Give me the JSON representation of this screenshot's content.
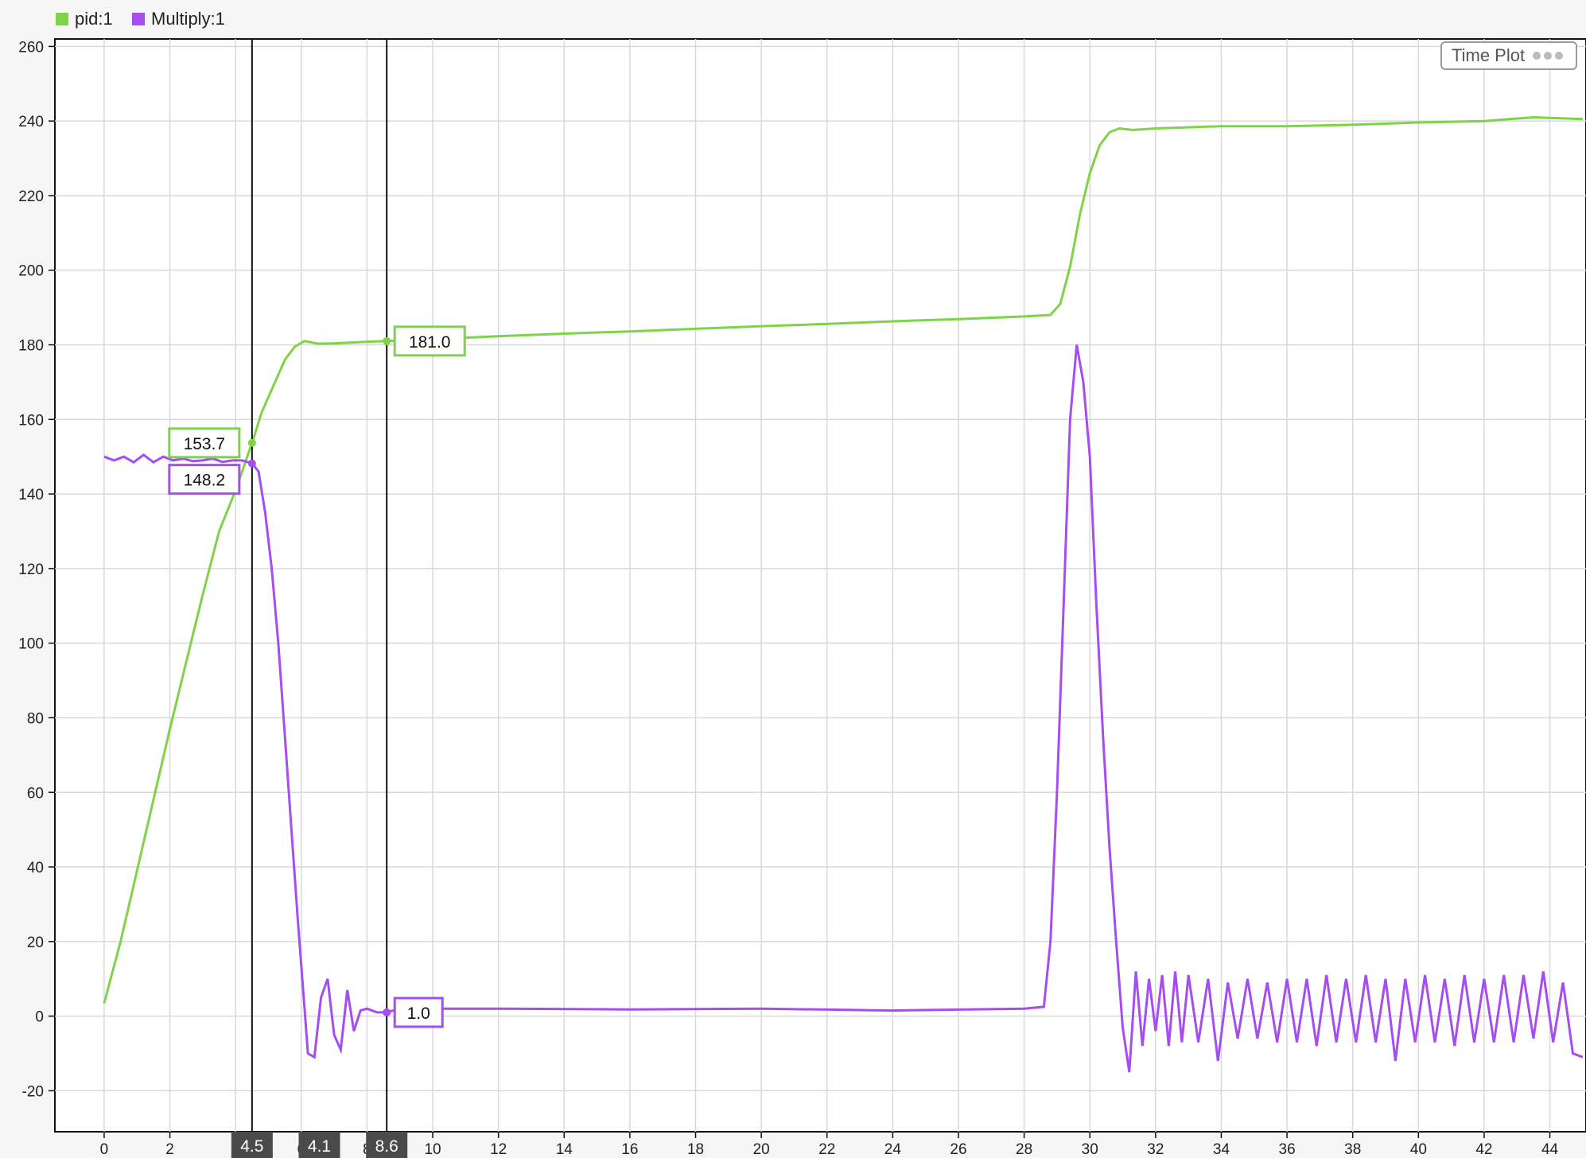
{
  "legend": [
    {
      "name": "pid:1",
      "color": "#7ed348"
    },
    {
      "name": "Multiply:1",
      "color": "#a64df1"
    }
  ],
  "time_plot_button": {
    "label": "Time Plot",
    "icon": "more-dots-icon"
  },
  "cursors": [
    {
      "x": 4.5,
      "label": "4.5"
    },
    {
      "x": 8.6,
      "label": "8.6"
    }
  ],
  "cursor_delta": {
    "label": "4.1"
  },
  "value_labels": [
    {
      "series": "pid:1",
      "x": 4.5,
      "y": 153.7,
      "text": "153.7"
    },
    {
      "series": "Multiply:1",
      "x": 4.5,
      "y": 148.2,
      "text": "148.2"
    },
    {
      "series": "pid:1",
      "x": 8.6,
      "y": 181.0,
      "text": "181.0"
    },
    {
      "series": "Multiply:1",
      "x": 8.6,
      "y": 1.0,
      "text": "1.0"
    }
  ],
  "chart_data": {
    "type": "line",
    "title": "",
    "xlabel": "",
    "ylabel": "",
    "xlim": [
      -1.5,
      45.1
    ],
    "ylim": [
      -31,
      262
    ],
    "x_ticks": [
      0,
      2,
      4,
      6,
      8,
      10,
      12,
      14,
      16,
      18,
      20,
      22,
      24,
      26,
      28,
      30,
      32,
      34,
      36,
      38,
      40,
      42,
      44
    ],
    "x_tick_labels": [
      "0",
      "2",
      "4",
      "6",
      "8",
      "10",
      "12",
      "14",
      "16",
      "18",
      "20",
      "22",
      "24",
      "26",
      "28",
      "30",
      "32",
      "34",
      "36",
      "38",
      "40",
      "42",
      "44"
    ],
    "y_ticks": [
      -20,
      0,
      20,
      40,
      60,
      80,
      100,
      120,
      140,
      160,
      180,
      200,
      220,
      240,
      260
    ],
    "y_tick_labels": [
      "-20",
      "0",
      "20",
      "40",
      "60",
      "80",
      "100",
      "120",
      "140",
      "160",
      "180",
      "200",
      "220",
      "240",
      "260"
    ],
    "grid": true,
    "legend_position": "top-left",
    "series": [
      {
        "name": "pid:1",
        "color": "#7ed348",
        "points": [
          [
            0,
            3.5
          ],
          [
            0.5,
            20
          ],
          [
            1,
            39
          ],
          [
            1.5,
            58
          ],
          [
            2,
            77
          ],
          [
            2.5,
            95
          ],
          [
            3,
            113
          ],
          [
            3.5,
            130
          ],
          [
            4,
            141
          ],
          [
            4.5,
            153.7
          ],
          [
            4.8,
            162
          ],
          [
            5,
            166
          ],
          [
            5.5,
            176
          ],
          [
            5.8,
            179.5
          ],
          [
            6.1,
            181
          ],
          [
            6.5,
            180.3
          ],
          [
            7,
            180.4
          ],
          [
            7.5,
            180.6
          ],
          [
            8,
            180.8
          ],
          [
            8.6,
            181.0
          ],
          [
            10,
            181.5
          ],
          [
            12,
            182.3
          ],
          [
            14,
            183
          ],
          [
            16,
            183.6
          ],
          [
            18,
            184.3
          ],
          [
            20,
            185
          ],
          [
            22,
            185.6
          ],
          [
            24,
            186.3
          ],
          [
            26,
            186.9
          ],
          [
            28,
            187.6
          ],
          [
            28.8,
            188
          ],
          [
            29.1,
            191
          ],
          [
            29.4,
            201
          ],
          [
            29.7,
            215
          ],
          [
            30,
            226
          ],
          [
            30.3,
            233.5
          ],
          [
            30.6,
            237
          ],
          [
            30.9,
            238
          ],
          [
            31.3,
            237.6
          ],
          [
            32,
            238
          ],
          [
            34,
            238.6
          ],
          [
            36,
            238.6
          ],
          [
            38,
            239
          ],
          [
            40,
            239.6
          ],
          [
            42,
            240
          ],
          [
            43.5,
            241
          ],
          [
            45,
            240.5
          ]
        ]
      },
      {
        "name": "Multiply:1",
        "color": "#a64df1",
        "points": [
          [
            0,
            150
          ],
          [
            0.3,
            149
          ],
          [
            0.6,
            150
          ],
          [
            0.9,
            148.5
          ],
          [
            1.2,
            150.5
          ],
          [
            1.5,
            148.5
          ],
          [
            1.8,
            150
          ],
          [
            2.1,
            149
          ],
          [
            2.4,
            149.5
          ],
          [
            2.7,
            148.8
          ],
          [
            3,
            149
          ],
          [
            3.3,
            149.5
          ],
          [
            3.6,
            148.6
          ],
          [
            3.9,
            149
          ],
          [
            4.2,
            149
          ],
          [
            4.5,
            148.2
          ],
          [
            4.7,
            146
          ],
          [
            4.9,
            135
          ],
          [
            5.1,
            120
          ],
          [
            5.3,
            100
          ],
          [
            5.5,
            75
          ],
          [
            5.7,
            50
          ],
          [
            5.9,
            25
          ],
          [
            6.1,
            2
          ],
          [
            6.2,
            -10
          ],
          [
            6.4,
            -11
          ],
          [
            6.6,
            5
          ],
          [
            6.8,
            10
          ],
          [
            7,
            -5
          ],
          [
            7.2,
            -9
          ],
          [
            7.4,
            7
          ],
          [
            7.6,
            -4
          ],
          [
            7.8,
            1.5
          ],
          [
            8,
            2
          ],
          [
            8.3,
            1
          ],
          [
            8.6,
            1.0
          ],
          [
            9,
            2
          ],
          [
            12,
            2
          ],
          [
            16,
            1.8
          ],
          [
            20,
            2
          ],
          [
            24,
            1.5
          ],
          [
            28,
            2
          ],
          [
            28.6,
            2.5
          ],
          [
            28.8,
            20
          ],
          [
            29,
            60
          ],
          [
            29.2,
            110
          ],
          [
            29.4,
            160
          ],
          [
            29.6,
            180
          ],
          [
            29.8,
            170
          ],
          [
            30,
            150
          ],
          [
            30.2,
            110
          ],
          [
            30.4,
            75
          ],
          [
            30.6,
            45
          ],
          [
            30.8,
            20
          ],
          [
            31,
            -3
          ],
          [
            31.2,
            -15
          ],
          [
            31.4,
            12
          ],
          [
            31.6,
            -8
          ],
          [
            31.8,
            10
          ],
          [
            32,
            -4
          ],
          [
            32.2,
            11
          ],
          [
            32.4,
            -8
          ],
          [
            32.6,
            12
          ],
          [
            32.8,
            -7
          ],
          [
            33,
            11
          ],
          [
            33.3,
            -7
          ],
          [
            33.6,
            10
          ],
          [
            33.9,
            -12
          ],
          [
            34.2,
            9
          ],
          [
            34.5,
            -6
          ],
          [
            34.8,
            10
          ],
          [
            35.1,
            -6
          ],
          [
            35.4,
            9
          ],
          [
            35.7,
            -7
          ],
          [
            36,
            10
          ],
          [
            36.3,
            -7
          ],
          [
            36.6,
            10
          ],
          [
            36.9,
            -8
          ],
          [
            37.2,
            11
          ],
          [
            37.5,
            -7
          ],
          [
            37.8,
            10
          ],
          [
            38.1,
            -7
          ],
          [
            38.4,
            11
          ],
          [
            38.7,
            -7
          ],
          [
            39,
            10
          ],
          [
            39.3,
            -12
          ],
          [
            39.6,
            10
          ],
          [
            39.9,
            -7
          ],
          [
            40.2,
            11
          ],
          [
            40.5,
            -7
          ],
          [
            40.8,
            10
          ],
          [
            41.1,
            -8
          ],
          [
            41.4,
            11
          ],
          [
            41.7,
            -7
          ],
          [
            42,
            10
          ],
          [
            42.3,
            -7
          ],
          [
            42.6,
            11
          ],
          [
            42.9,
            -7
          ],
          [
            43.2,
            11
          ],
          [
            43.5,
            -6
          ],
          [
            43.8,
            12
          ],
          [
            44.1,
            -7
          ],
          [
            44.4,
            9
          ],
          [
            44.7,
            -10
          ],
          [
            45,
            -11
          ]
        ]
      }
    ]
  }
}
